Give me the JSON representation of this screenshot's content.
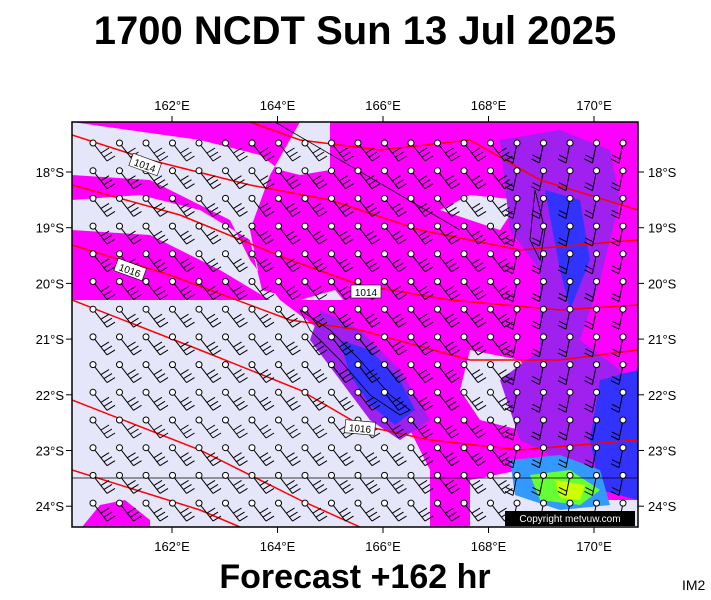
{
  "title": "1700 NCDT Sun 13 Jul 2025",
  "footer": "Forecast +162 hr",
  "corner_label": "IM2",
  "copyright": "Copyright metvuw.com",
  "longitude_labels": [
    "162°E",
    "164°E",
    "166°E",
    "168°E",
    "170°E"
  ],
  "latitude_labels": [
    "18°S",
    "19°S",
    "20°S",
    "21°S",
    "22°S",
    "23°S",
    "24°S"
  ],
  "isobar_labels": [
    "1014",
    "1016",
    "1014",
    "1016"
  ]
}
